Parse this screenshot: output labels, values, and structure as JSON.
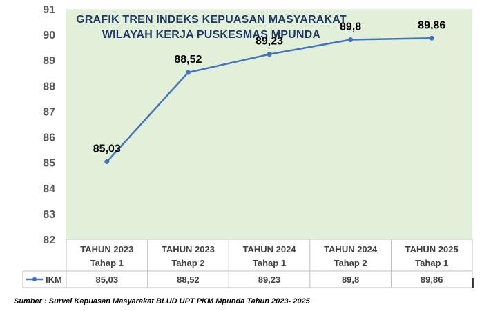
{
  "chart_data": {
    "type": "line",
    "title": [
      "GRAFIK TREN INDEKS KEPUASAN MASYARAKAT",
      "WILAYAH KERJA PUSKESMAS MPUNDA"
    ],
    "categories": [
      [
        "TAHUN 2023",
        "Tahap 1"
      ],
      [
        "TAHUN 2023",
        "Tahap 2"
      ],
      [
        "TAHUN 2024",
        "Tahap 1"
      ],
      [
        "TAHUN 2024",
        "Tahap 2"
      ],
      [
        "TAHUN 2025",
        "Tahap 1"
      ]
    ],
    "series": [
      {
        "name": "IKM",
        "values": [
          85.03,
          88.52,
          89.23,
          89.8,
          89.86
        ],
        "labels": [
          "85,03",
          "88,52",
          "89,23",
          "89,8",
          "89,86"
        ]
      }
    ],
    "ylim": [
      82,
      91
    ],
    "yticks": [
      "82",
      "83",
      "84",
      "85",
      "86",
      "87",
      "88",
      "89",
      "90",
      "91"
    ],
    "xlabel": "",
    "ylabel": "",
    "grid": false,
    "legend": "data-table",
    "colors": {
      "line": "#4472c4",
      "plot_bg": "#e2efd9",
      "title": "#1f3864"
    }
  },
  "source_note": "Sumber : Survei Kepuasan Masyarakat BLUD UPT PKM Mpunda Tahun 2023- 2025"
}
